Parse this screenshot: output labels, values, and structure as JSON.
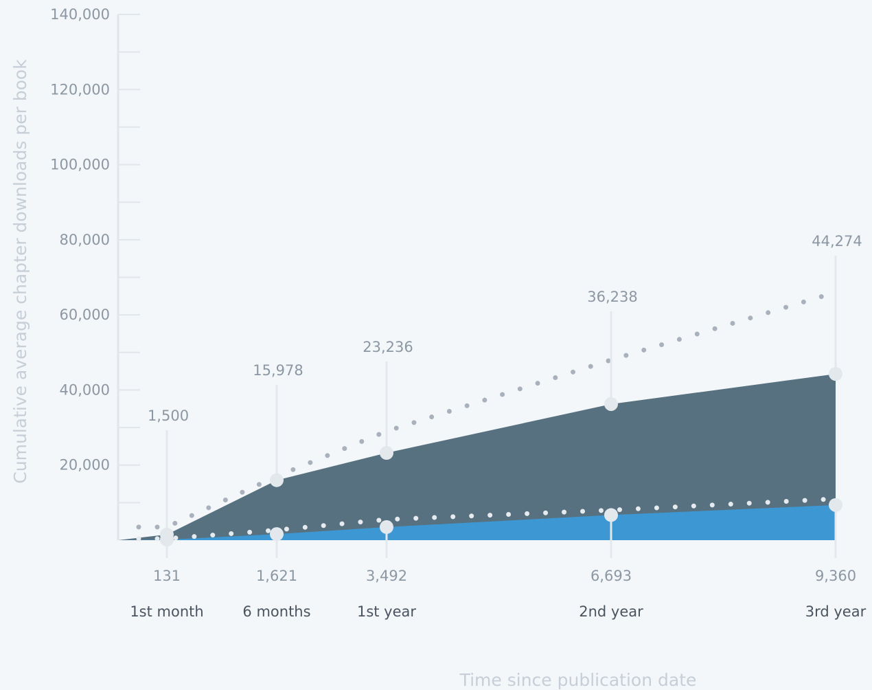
{
  "chart_data": {
    "type": "area",
    "xlabel": "Time since publication date",
    "ylabel": "Cumulative average chapter downloads per book",
    "ylim": [
      0,
      140000
    ],
    "yticks": [
      {
        "value": 20000,
        "label": "20,000"
      },
      {
        "value": 40000,
        "label": "40,000"
      },
      {
        "value": 60000,
        "label": "60,000"
      },
      {
        "value": 80000,
        "label": "80,000"
      },
      {
        "value": 100000,
        "label": "100,000"
      },
      {
        "value": 120000,
        "label": "120,000"
      },
      {
        "value": 140000,
        "label": "140,000"
      }
    ],
    "grid": false,
    "categories": [
      "1st month",
      "6 months",
      "1st year",
      "2nd year",
      "3rd year"
    ],
    "x_months": [
      1,
      6,
      12,
      24,
      36
    ],
    "series": [
      {
        "name": "",
        "style": "area",
        "color": "#587180",
        "values": [
          1500,
          15978,
          23236,
          36238,
          44274
        ],
        "data_labels": [
          "1,500",
          "15,978",
          "23,236",
          "36,238",
          "44,274"
        ]
      },
      {
        "name": "",
        "style": "area",
        "color": "#3d97d3",
        "values": [
          131,
          1621,
          3492,
          6693,
          9360
        ],
        "data_labels": [
          "131",
          "1,621",
          "3,492",
          "6,693",
          "9,360"
        ]
      },
      {
        "name": "",
        "style": "dotted-line",
        "color": "#a9b2bc",
        "values": [
          3500,
          17000,
          29000,
          48000,
          66000
        ]
      },
      {
        "name": "",
        "style": "dotted-line",
        "color": "#e6ebf0",
        "values": [
          400,
          2700,
          5500,
          8000,
          11000
        ]
      }
    ],
    "colors": {
      "background": "#f4f7fa",
      "axis": "#e1e6ea",
      "marker": "#e3e8ed"
    }
  }
}
